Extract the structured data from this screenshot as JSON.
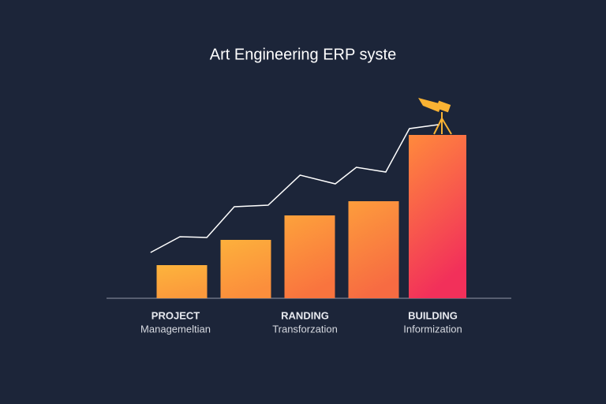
{
  "chart_data": {
    "type": "bar",
    "title": "Art Engineering ERP syste",
    "categories": [
      "PROJECT",
      null,
      "RANDING",
      null,
      "BUILDING"
    ],
    "category_subtitles": [
      "Managemeltian",
      null,
      "Transforzation",
      null,
      "Informization"
    ],
    "values": [
      42,
      74,
      105,
      123,
      207
    ],
    "colors": [
      [
        "#fdb43c",
        "#fb9a3c"
      ],
      [
        "#fdb03c",
        "#fb8e3c"
      ],
      [
        "#fda23c",
        "#f9743e"
      ],
      [
        "#fd9d3c",
        "#f76b42"
      ],
      [
        "#ff8a3c",
        "#f2305a"
      ]
    ],
    "ylim": [
      0,
      220
    ],
    "line": {
      "color": "#ffffff",
      "x": [
        0.01,
        0.47,
        0.89,
        1.32,
        1.85,
        2.35,
        2.9,
        3.23,
        3.69,
        4.06,
        4.51
      ],
      "values": [
        58,
        78,
        77,
        116,
        118,
        156,
        145,
        166,
        160,
        215,
        220
      ]
    },
    "xlim": [
      0,
      5
    ]
  }
}
